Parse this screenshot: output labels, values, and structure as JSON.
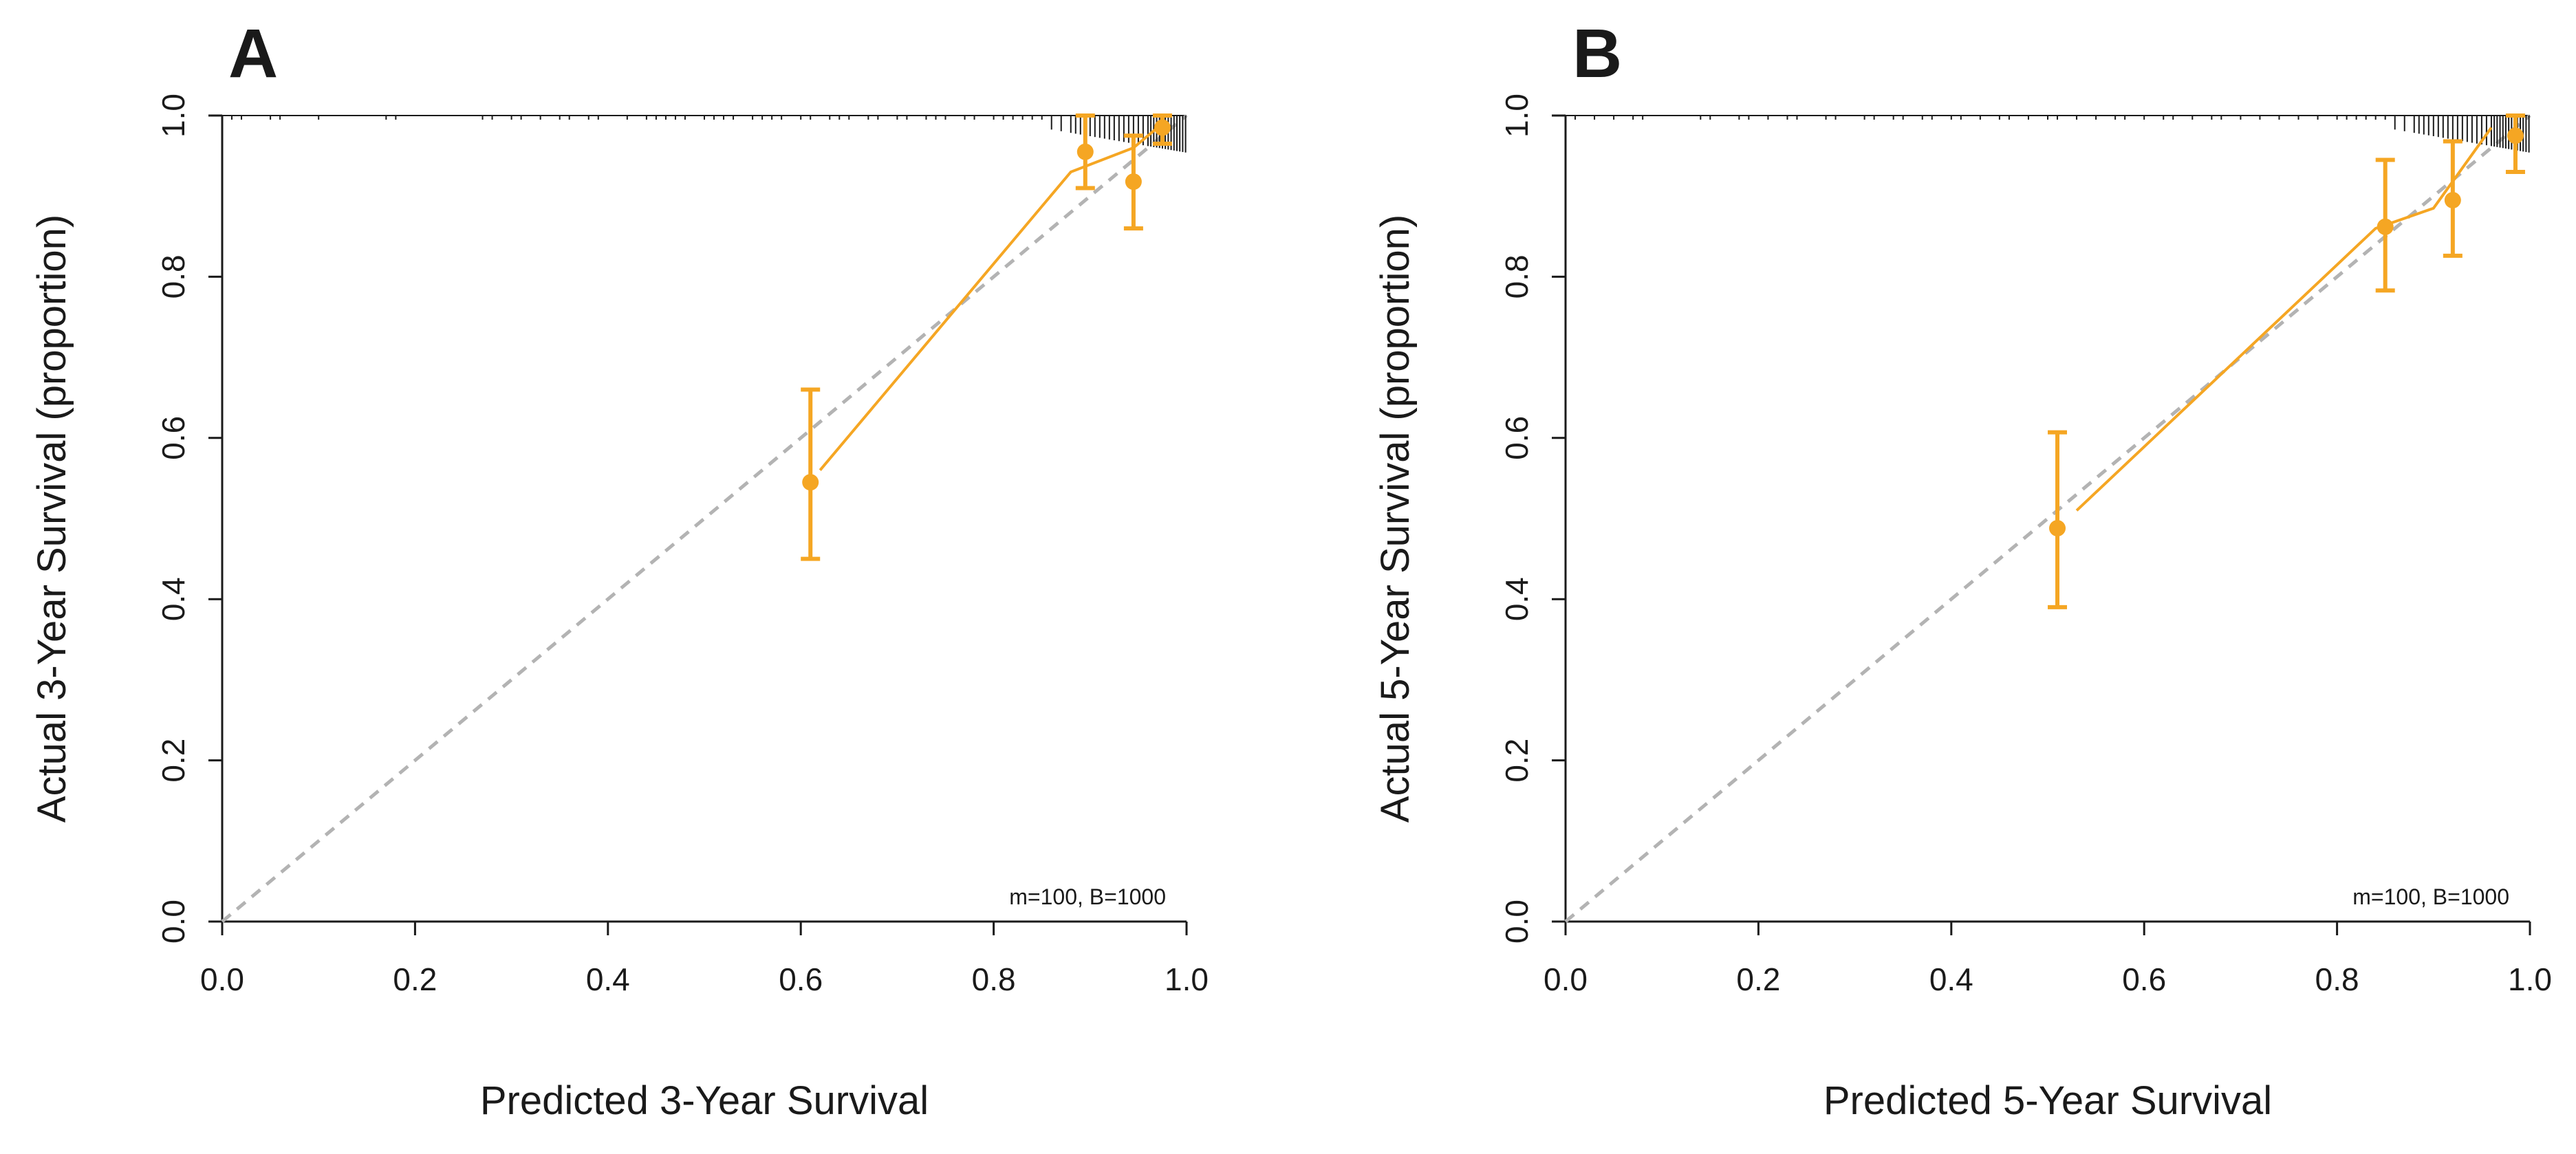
{
  "colors": {
    "calibration": "#f5a623",
    "ideal_line": "#b3b3b3",
    "axis": "#1a1a1a"
  },
  "chart_data": [
    {
      "panel": "A",
      "type": "scatter",
      "xlabel": "Predicted 3-Year Survival",
      "ylabel": "Actual 3-Year Survival (proportion)",
      "xlim": [
        0,
        1
      ],
      "ylim": [
        0,
        1
      ],
      "xticks": [
        "0.0",
        "0.2",
        "0.4",
        "0.6",
        "0.8",
        "1.0"
      ],
      "yticks": [
        "0.0",
        "0.2",
        "0.4",
        "0.6",
        "0.8",
        "1.0"
      ],
      "annotation": "m=100, B=1000",
      "ideal_line": [
        [
          0,
          0
        ],
        [
          1,
          1
        ]
      ],
      "points": [
        {
          "x": 0.61,
          "y": 0.545,
          "lower": 0.45,
          "upper": 0.66
        },
        {
          "x": 0.895,
          "y": 0.955,
          "lower": 0.91,
          "upper": 1.0
        },
        {
          "x": 0.945,
          "y": 0.918,
          "lower": 0.86,
          "upper": 0.975
        },
        {
          "x": 0.975,
          "y": 0.985,
          "lower": 0.965,
          "upper": 1.0
        }
      ],
      "bias_corrected_line": [
        [
          0.62,
          0.56
        ],
        [
          0.88,
          0.93
        ],
        [
          0.945,
          0.96
        ],
        [
          0.97,
          0.985
        ]
      ],
      "rug_x": [
        0.01,
        0.02,
        0.05,
        0.06,
        0.1,
        0.17,
        0.18,
        0.27,
        0.28,
        0.3,
        0.31,
        0.33,
        0.35,
        0.36,
        0.38,
        0.39,
        0.42,
        0.44,
        0.45,
        0.46,
        0.47,
        0.48,
        0.5,
        0.51,
        0.52,
        0.53,
        0.55,
        0.56,
        0.57,
        0.58,
        0.6,
        0.61,
        0.63,
        0.64,
        0.65,
        0.67,
        0.68,
        0.7,
        0.71,
        0.73,
        0.74,
        0.75,
        0.77,
        0.78,
        0.8,
        0.81,
        0.82,
        0.83,
        0.84,
        0.85,
        0.86,
        0.87,
        0.88,
        0.885,
        0.89,
        0.9,
        0.905,
        0.91,
        0.915,
        0.92,
        0.925,
        0.93,
        0.935,
        0.94,
        0.945,
        0.95,
        0.955,
        0.96,
        0.963,
        0.966,
        0.969,
        0.972,
        0.975,
        0.978,
        0.981,
        0.984,
        0.987,
        0.99,
        0.993,
        0.996,
        0.999
      ]
    },
    {
      "panel": "B",
      "type": "scatter",
      "xlabel": "Predicted 5-Year Survival",
      "ylabel": "Actual 5-Year Survival (proportion)",
      "xlim": [
        0,
        1
      ],
      "ylim": [
        0,
        1
      ],
      "xticks": [
        "0.0",
        "0.2",
        "0.4",
        "0.6",
        "0.8",
        "1.0"
      ],
      "yticks": [
        "0.0",
        "0.2",
        "0.4",
        "0.6",
        "0.8",
        "1.0"
      ],
      "annotation": "m=100, B=1000",
      "ideal_line": [
        [
          0,
          0
        ],
        [
          1,
          1
        ]
      ],
      "points": [
        {
          "x": 0.51,
          "y": 0.488,
          "lower": 0.39,
          "upper": 0.607
        },
        {
          "x": 0.85,
          "y": 0.862,
          "lower": 0.783,
          "upper": 0.945
        },
        {
          "x": 0.92,
          "y": 0.895,
          "lower": 0.826,
          "upper": 0.968
        },
        {
          "x": 0.985,
          "y": 0.975,
          "lower": 0.93,
          "upper": 1.0
        }
      ],
      "bias_corrected_line": [
        [
          0.53,
          0.51
        ],
        [
          0.84,
          0.86
        ],
        [
          0.9,
          0.885
        ],
        [
          0.96,
          0.985
        ]
      ],
      "rug_x": [
        0.01,
        0.03,
        0.05,
        0.07,
        0.08,
        0.14,
        0.15,
        0.18,
        0.19,
        0.21,
        0.23,
        0.24,
        0.27,
        0.28,
        0.31,
        0.32,
        0.34,
        0.35,
        0.37,
        0.38,
        0.4,
        0.41,
        0.43,
        0.45,
        0.46,
        0.48,
        0.5,
        0.51,
        0.53,
        0.55,
        0.57,
        0.58,
        0.6,
        0.62,
        0.63,
        0.65,
        0.67,
        0.68,
        0.7,
        0.72,
        0.74,
        0.76,
        0.78,
        0.8,
        0.81,
        0.82,
        0.83,
        0.84,
        0.85,
        0.86,
        0.87,
        0.88,
        0.885,
        0.89,
        0.895,
        0.9,
        0.905,
        0.91,
        0.915,
        0.92,
        0.925,
        0.93,
        0.935,
        0.94,
        0.945,
        0.95,
        0.955,
        0.96,
        0.963,
        0.966,
        0.969,
        0.972,
        0.975,
        0.978,
        0.981,
        0.984,
        0.987,
        0.99,
        0.993,
        0.996,
        0.999
      ]
    }
  ]
}
